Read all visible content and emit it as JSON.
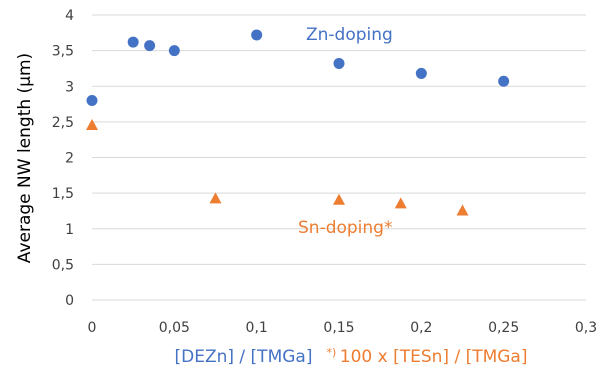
{
  "chart_data": {
    "type": "scatter",
    "title": "",
    "ylabel": "Average NW length (µm)",
    "xlabel_parts": [
      {
        "text": "[DEZn] / [TMGa]",
        "color": "#4472c4"
      },
      {
        "text": "*) ",
        "color": "#ed7d31",
        "superscript": true
      },
      {
        "text": "100 x [TESn] / [TMGa]",
        "color": "#ed7d31"
      }
    ],
    "xlim": [
      0,
      0.3
    ],
    "ylim": [
      0,
      4
    ],
    "xticks": [
      0,
      0.05,
      0.1,
      0.15,
      0.2,
      0.25,
      0.3
    ],
    "xtick_labels": [
      "0",
      "0,05",
      "0,1",
      "0,15",
      "0,2",
      "0,25",
      "0,3"
    ],
    "yticks": [
      0,
      0.5,
      1,
      1.5,
      2,
      2.5,
      3,
      3.5,
      4
    ],
    "ytick_labels": [
      "0",
      "0,5",
      "1",
      "1,5",
      "2",
      "2,5",
      "3",
      "3,5",
      "4"
    ],
    "grid": "horizontal",
    "legend": "none",
    "series": [
      {
        "marker": "circle",
        "color": "#4472c4",
        "x": [
          0,
          0.025,
          0.035,
          0.05,
          0.1,
          0.15,
          0.2,
          0.25
        ],
        "y": [
          2.8,
          3.62,
          3.57,
          3.5,
          3.72,
          3.32,
          3.18,
          3.07
        ]
      },
      {
        "marker": "triangle",
        "color": "#ed7d31",
        "x": [
          0,
          0.075,
          0.15,
          0.1875,
          0.225
        ],
        "y": [
          2.45,
          1.42,
          1.4,
          1.35,
          1.25
        ]
      }
    ],
    "annotations": [
      {
        "text": "Zn-doping",
        "color": "#4472c4",
        "near_series": 0
      },
      {
        "text": "Sn-doping*",
        "color": "#ed7d31",
        "near_series": 1
      }
    ]
  }
}
